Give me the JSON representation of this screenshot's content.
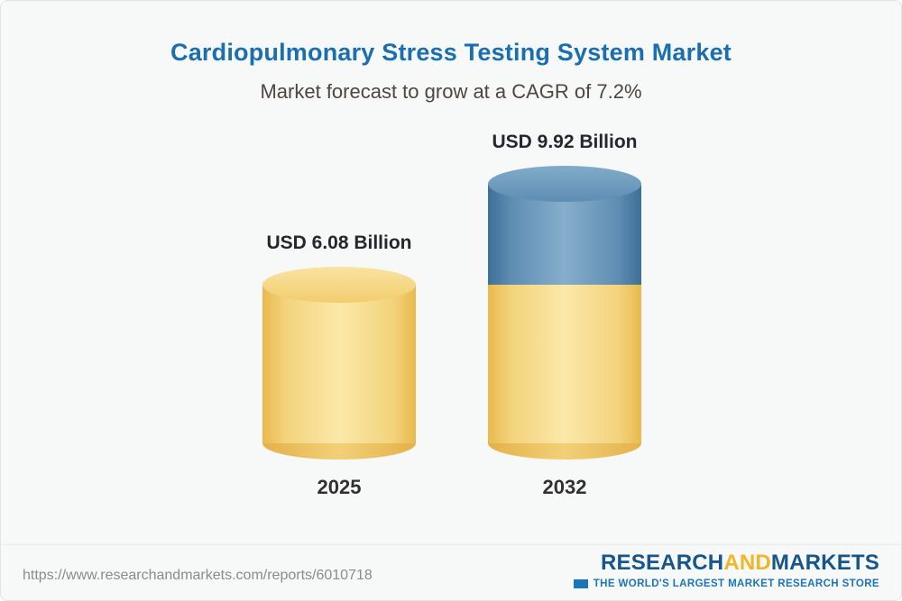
{
  "header": {
    "title": "Cardiopulmonary Stress Testing System Market",
    "subtitle": "Market forecast to grow at a CAGR of 7.2%"
  },
  "chart_data": {
    "type": "bar",
    "subtype": "cylinder-3d",
    "categories": [
      "2025",
      "2032"
    ],
    "values": [
      6.08,
      9.92
    ],
    "value_labels": [
      "USD 6.08 Billion",
      "USD 9.92 Billion"
    ],
    "unit": "USD Billion",
    "title": "Cardiopulmonary Stress Testing System Market",
    "subtitle": "Market forecast to grow at a CAGR of 7.2%",
    "cagr": "7.2%",
    "legend": "none",
    "grid": false,
    "colors": {
      "base_segment": "#f2cf74",
      "growth_segment": "#6d9abd"
    },
    "notes": "2032 bar is stacked: lower (base) segment gold, upper (growth) segment blue"
  },
  "footer": {
    "source_url": "https://www.researchandmarkets.com/reports/6010718",
    "logo": {
      "part1": "RESEARCH",
      "part2": "AND",
      "part3": "MARKETS",
      "tagline": "THE WORLD'S LARGEST MARKET RESEARCH STORE"
    }
  }
}
